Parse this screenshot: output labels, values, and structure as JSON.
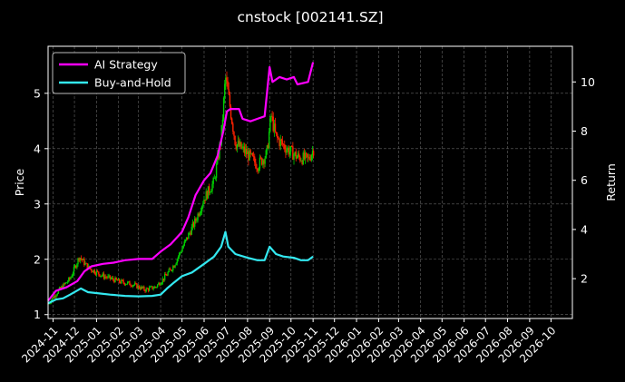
{
  "chart_data": {
    "type": "line",
    "title": "cnstock [002141.SZ]",
    "ylabel_left": "Price",
    "ylabel_right": "Return",
    "grid": true,
    "legend_position": "top-left",
    "xlim": [
      "2024-10-25",
      "2026-10-31"
    ],
    "ylim_left": [
      0.93,
      5.85
    ],
    "ylim_right": [
      0.38,
      11.45
    ],
    "yticks_left": [
      1,
      2,
      3,
      4,
      5
    ],
    "yticks_right": [
      2,
      4,
      6,
      8,
      10
    ],
    "xticks": [
      "2024-11",
      "2024-12",
      "2025-01",
      "2025-02",
      "2025-03",
      "2025-04",
      "2025-05",
      "2025-06",
      "2025-07",
      "2025-08",
      "2025-09",
      "2025-10",
      "2025-11",
      "2025-12",
      "2026-01",
      "2026-02",
      "2026-03",
      "2026-04",
      "2026-05",
      "2026-06",
      "2026-07",
      "2026-08",
      "2026-09",
      "2026-10"
    ],
    "series": [
      {
        "name": "AI Strategy",
        "axis": "right",
        "color": "#ff00ff",
        "points": [
          [
            "2024-10-25",
            1.1
          ],
          [
            "2024-11-05",
            1.5
          ],
          [
            "2024-11-20",
            1.65
          ],
          [
            "2024-12-05",
            1.9
          ],
          [
            "2024-12-15",
            2.3
          ],
          [
            "2024-12-25",
            2.5
          ],
          [
            "2025-01-10",
            2.6
          ],
          [
            "2025-01-25",
            2.65
          ],
          [
            "2025-02-10",
            2.75
          ],
          [
            "2025-03-01",
            2.8
          ],
          [
            "2025-03-20",
            2.8
          ],
          [
            "2025-04-01",
            3.1
          ],
          [
            "2025-04-15",
            3.4
          ],
          [
            "2025-05-01",
            3.9
          ],
          [
            "2025-05-10",
            4.5
          ],
          [
            "2025-05-20",
            5.4
          ],
          [
            "2025-06-01",
            6.0
          ],
          [
            "2025-06-10",
            6.3
          ],
          [
            "2025-06-20",
            7.0
          ],
          [
            "2025-06-28",
            8.0
          ],
          [
            "2025-07-03",
            8.8
          ],
          [
            "2025-07-08",
            8.9
          ],
          [
            "2025-07-20",
            8.9
          ],
          [
            "2025-07-25",
            8.5
          ],
          [
            "2025-08-05",
            8.4
          ],
          [
            "2025-08-15",
            8.5
          ],
          [
            "2025-08-25",
            8.6
          ],
          [
            "2025-09-01",
            10.6
          ],
          [
            "2025-09-05",
            10.0
          ],
          [
            "2025-09-15",
            10.2
          ],
          [
            "2025-09-25",
            10.1
          ],
          [
            "2025-10-05",
            10.2
          ],
          [
            "2025-10-10",
            9.9
          ],
          [
            "2025-10-25",
            10.0
          ],
          [
            "2025-11-01",
            10.8
          ]
        ]
      },
      {
        "name": "Buy-and-Hold",
        "axis": "right",
        "color": "#33e8f0",
        "points": [
          [
            "2024-10-25",
            1.0
          ],
          [
            "2024-11-05",
            1.15
          ],
          [
            "2024-11-15",
            1.2
          ],
          [
            "2024-11-25",
            1.35
          ],
          [
            "2024-12-10",
            1.6
          ],
          [
            "2024-12-20",
            1.45
          ],
          [
            "2025-01-05",
            1.4
          ],
          [
            "2025-01-20",
            1.35
          ],
          [
            "2025-02-10",
            1.3
          ],
          [
            "2025-03-01",
            1.28
          ],
          [
            "2025-03-20",
            1.3
          ],
          [
            "2025-04-01",
            1.35
          ],
          [
            "2025-04-10",
            1.6
          ],
          [
            "2025-04-20",
            1.85
          ],
          [
            "2025-05-01",
            2.1
          ],
          [
            "2025-05-15",
            2.25
          ],
          [
            "2025-06-01",
            2.6
          ],
          [
            "2025-06-15",
            2.9
          ],
          [
            "2025-06-25",
            3.3
          ],
          [
            "2025-07-01",
            3.9
          ],
          [
            "2025-07-05",
            3.3
          ],
          [
            "2025-07-15",
            3.0
          ],
          [
            "2025-08-01",
            2.85
          ],
          [
            "2025-08-15",
            2.75
          ],
          [
            "2025-08-25",
            2.75
          ],
          [
            "2025-09-01",
            3.3
          ],
          [
            "2025-09-10",
            3.0
          ],
          [
            "2025-09-20",
            2.9
          ],
          [
            "2025-10-05",
            2.85
          ],
          [
            "2025-10-15",
            2.75
          ],
          [
            "2025-10-25",
            2.75
          ],
          [
            "2025-11-01",
            2.9
          ]
        ]
      }
    ],
    "price_candles": {
      "axis": "left",
      "up_color": "#00cc00",
      "down_color": "#ff2200",
      "close_path": [
        [
          "2024-10-25",
          1.2
        ],
        [
          "2024-11-10",
          1.45
        ],
        [
          "2024-11-25",
          1.65
        ],
        [
          "2024-12-08",
          2.05
        ],
        [
          "2024-12-20",
          1.85
        ],
        [
          "2025-01-10",
          1.7
        ],
        [
          "2025-02-01",
          1.6
        ],
        [
          "2025-02-20",
          1.55
        ],
        [
          "2025-03-10",
          1.45
        ],
        [
          "2025-03-25",
          1.5
        ],
        [
          "2025-04-05",
          1.65
        ],
        [
          "2025-04-20",
          1.9
        ],
        [
          "2025-05-05",
          2.3
        ],
        [
          "2025-05-20",
          2.7
        ],
        [
          "2025-06-01",
          3.1
        ],
        [
          "2025-06-15",
          3.4
        ],
        [
          "2025-06-25",
          4.2
        ],
        [
          "2025-07-01",
          5.3
        ],
        [
          "2025-07-08",
          4.7
        ],
        [
          "2025-07-15",
          4.1
        ],
        [
          "2025-08-01",
          3.9
        ],
        [
          "2025-08-15",
          3.7
        ],
        [
          "2025-08-28",
          3.9
        ],
        [
          "2025-09-03",
          4.6
        ],
        [
          "2025-09-10",
          4.2
        ],
        [
          "2025-09-25",
          4.0
        ],
        [
          "2025-10-10",
          3.85
        ],
        [
          "2025-10-25",
          3.8
        ],
        [
          "2025-11-02",
          4.0
        ]
      ]
    }
  }
}
